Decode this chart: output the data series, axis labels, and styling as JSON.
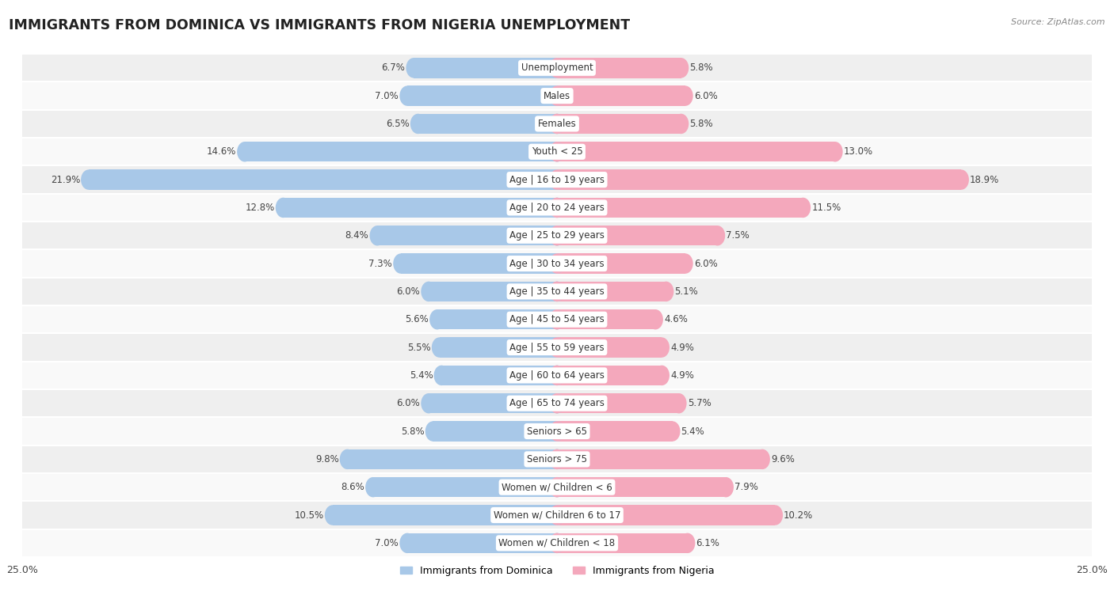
{
  "title": "IMMIGRANTS FROM DOMINICA VS IMMIGRANTS FROM NIGERIA UNEMPLOYMENT",
  "source": "Source: ZipAtlas.com",
  "categories": [
    "Unemployment",
    "Males",
    "Females",
    "Youth < 25",
    "Age | 16 to 19 years",
    "Age | 20 to 24 years",
    "Age | 25 to 29 years",
    "Age | 30 to 34 years",
    "Age | 35 to 44 years",
    "Age | 45 to 54 years",
    "Age | 55 to 59 years",
    "Age | 60 to 64 years",
    "Age | 65 to 74 years",
    "Seniors > 65",
    "Seniors > 75",
    "Women w/ Children < 6",
    "Women w/ Children 6 to 17",
    "Women w/ Children < 18"
  ],
  "dominica_values": [
    6.7,
    7.0,
    6.5,
    14.6,
    21.9,
    12.8,
    8.4,
    7.3,
    6.0,
    5.6,
    5.5,
    5.4,
    6.0,
    5.8,
    9.8,
    8.6,
    10.5,
    7.0
  ],
  "nigeria_values": [
    5.8,
    6.0,
    5.8,
    13.0,
    18.9,
    11.5,
    7.5,
    6.0,
    5.1,
    4.6,
    4.9,
    4.9,
    5.7,
    5.4,
    9.6,
    7.9,
    10.2,
    6.1
  ],
  "dominica_color": "#a8c8e8",
  "nigeria_color": "#f4a8bc",
  "dominica_label": "Immigrants from Dominica",
  "nigeria_label": "Immigrants from Nigeria",
  "xlim": 25.0,
  "bar_height": 0.72,
  "row_colors": [
    "#efefef",
    "#f9f9f9"
  ],
  "title_fontsize": 12.5,
  "value_fontsize": 8.5,
  "category_fontsize": 8.5,
  "legend_fontsize": 9,
  "source_fontsize": 8
}
